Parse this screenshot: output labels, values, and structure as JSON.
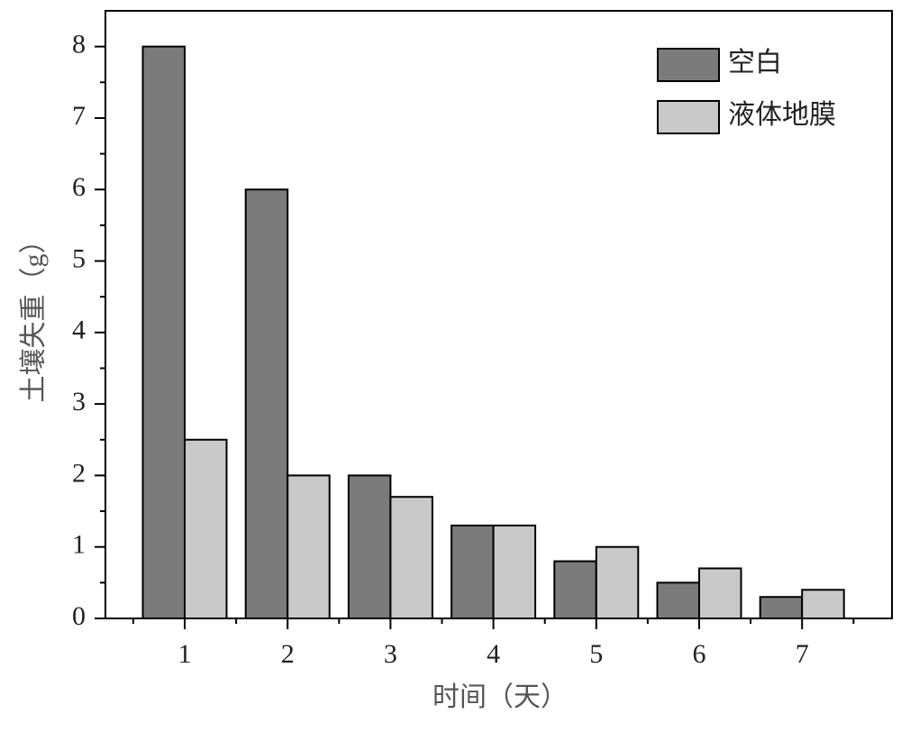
{
  "chart_data": {
    "type": "bar",
    "x_label": "时间（天）",
    "y_label": "土壤失重（g）",
    "categories": [
      "1",
      "2",
      "3",
      "4",
      "5",
      "6",
      "7"
    ],
    "series": [
      {
        "name": "空白",
        "color": "#7b7b7b",
        "values": [
          8,
          6,
          2,
          1.3,
          0.8,
          0.5,
          0.3
        ]
      },
      {
        "name": "液体地膜",
        "color": "#c9c9c9",
        "values": [
          2.5,
          2,
          1.7,
          1.3,
          1.0,
          0.7,
          0.4
        ]
      }
    ],
    "ylim": [
      0,
      8.5
    ],
    "yticks": [
      0,
      1,
      2,
      3,
      4,
      5,
      6,
      7,
      8
    ],
    "legend": "upper right"
  }
}
